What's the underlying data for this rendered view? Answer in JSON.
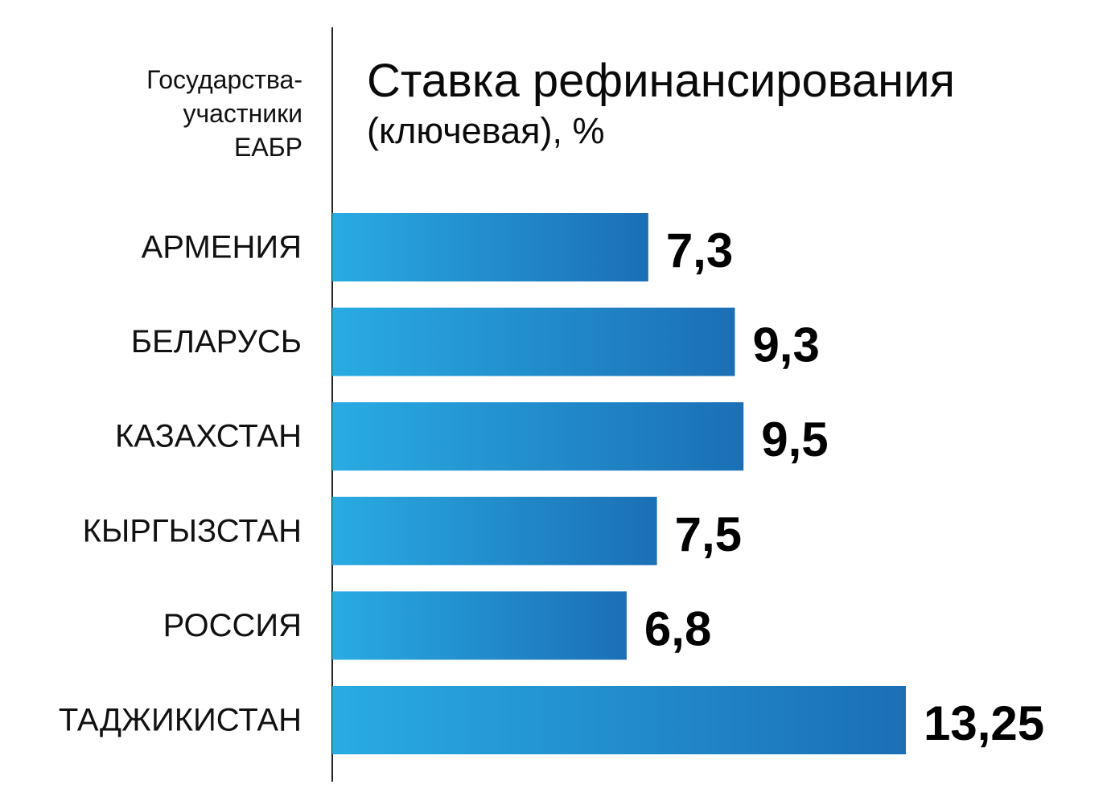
{
  "header": {
    "left_line1": "Государства-",
    "left_line2": "участники",
    "left_line3": "ЕАБР"
  },
  "chart_data": {
    "type": "bar",
    "orientation": "horizontal",
    "title": "Ставка рефинансирования",
    "subtitle": "(ключевая), %",
    "categories": [
      "АРМЕНИЯ",
      "БЕЛАРУСЬ",
      "КАЗАХСТАН",
      "КЫРГЫЗСТАН",
      "РОССИЯ",
      "ТАДЖИКИСТАН"
    ],
    "values": [
      7.3,
      9.3,
      9.5,
      7.5,
      6.8,
      13.25
    ],
    "value_labels": [
      "7,3",
      "9,3",
      "9,5",
      "7,5",
      "6,8",
      "13,25"
    ],
    "xlim": [
      0,
      13.25
    ],
    "grid": false,
    "colors": {
      "bar_start": "#29abe2",
      "bar_end": "#1b6fb5",
      "axis": "#222222"
    }
  }
}
